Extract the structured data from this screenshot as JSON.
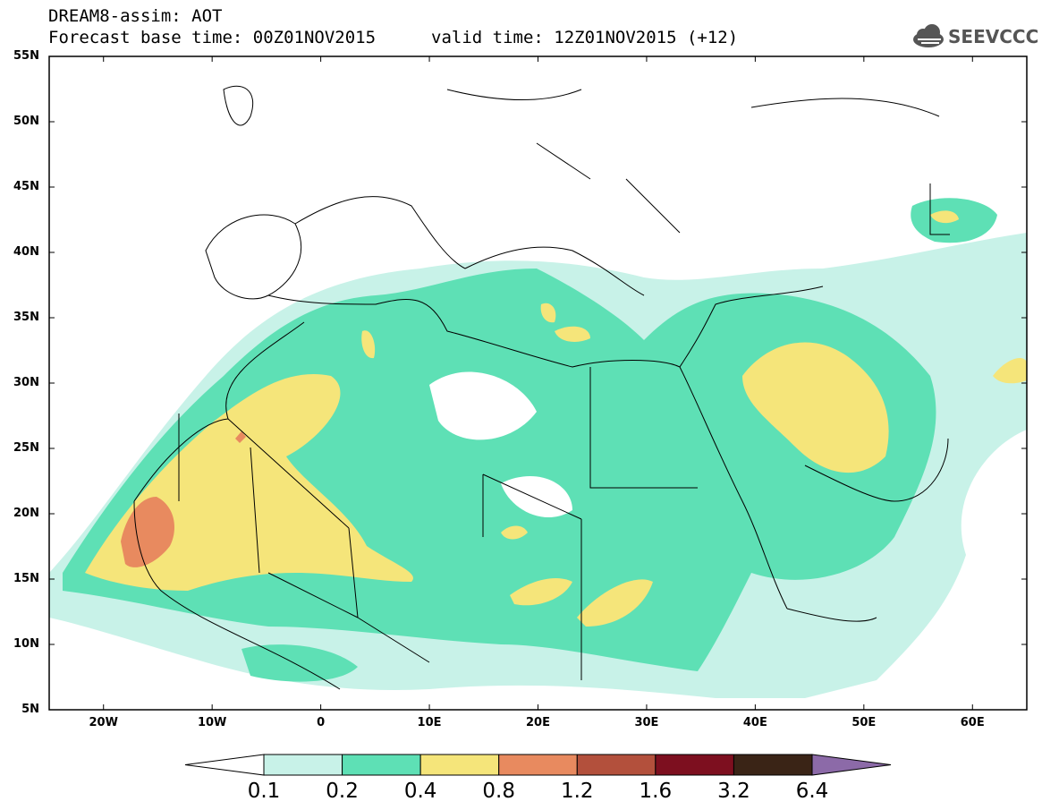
{
  "header": {
    "line1": "DREAM8-assim: AOT",
    "line2": "Forecast base time: 00Z01NOV2015",
    "line3": "valid time: 12Z01NOV2015 (+12)"
  },
  "logo": {
    "text": "SEEVCCC",
    "icon": "cloud-icon"
  },
  "map": {
    "lat_labels": [
      "55N",
      "50N",
      "45N",
      "40N",
      "35N",
      "30N",
      "25N",
      "20N",
      "15N",
      "10N",
      "5N"
    ],
    "lon_labels": [
      "20W",
      "10W",
      "0",
      "10E",
      "20E",
      "30E",
      "40E",
      "50E",
      "60E"
    ],
    "extent": {
      "lon": [
        -25,
        65
      ],
      "lat": [
        5,
        55
      ]
    }
  },
  "colorbar": {
    "labels": [
      "0.1",
      "0.2",
      "0.4",
      "0.8",
      "1.2",
      "1.6",
      "3.2",
      "6.4"
    ],
    "colors": [
      "#c8f2e8",
      "#5ee0b5",
      "#f5e57a",
      "#e88a5f",
      "#b3503c",
      "#7d0f1f",
      "#3a2416",
      "#8c6aa8"
    ]
  }
}
